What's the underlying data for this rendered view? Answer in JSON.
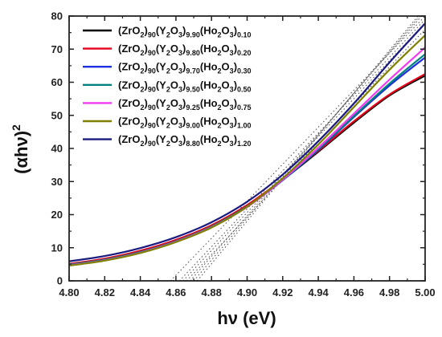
{
  "chart_data": {
    "type": "line",
    "xlabel": "hν (eV)",
    "ylabel": "(αhν)²",
    "xlim": [
      4.8,
      5.0
    ],
    "ylim": [
      0,
      80
    ],
    "x_ticks": [
      "4.80",
      "4.82",
      "4.84",
      "4.86",
      "4.88",
      "4.90",
      "4.92",
      "4.94",
      "4.96",
      "4.98",
      "5.00"
    ],
    "y_ticks": [
      "0",
      "10",
      "20",
      "30",
      "40",
      "50",
      "60",
      "70",
      "80"
    ],
    "legend_position": "top-left",
    "x": [
      4.8,
      4.82,
      4.84,
      4.86,
      4.88,
      4.9,
      4.92,
      4.94,
      4.96,
      4.98,
      5.0
    ],
    "series": [
      {
        "name": "(ZrO2)90(Y2O3)9.90(Ho2O3)0.10",
        "parts": [
          [
            "(ZrO",
            ""
          ],
          [
            "2",
            "sub"
          ],
          [
            ")",
            ""
          ],
          [
            "90",
            "sub"
          ],
          [
            "(Y",
            ""
          ],
          [
            "2",
            "sub"
          ],
          [
            "O",
            ""
          ],
          [
            "3",
            "sub"
          ],
          [
            ")",
            ""
          ],
          [
            "9.90",
            "sub"
          ],
          [
            "(Ho",
            ""
          ],
          [
            "2",
            "sub"
          ],
          [
            "O",
            ""
          ],
          [
            "3",
            "sub"
          ],
          [
            ")",
            ""
          ],
          [
            "0.10",
            "sub"
          ]
        ],
        "color": "#000000",
        "values": [
          5.0,
          6.6,
          9.0,
          12.3,
          16.7,
          22.8,
          30.5,
          39.0,
          47.8,
          56.0,
          62.0
        ]
      },
      {
        "name": "(ZrO2)90(Y2O3)9.80(Ho2O3)0.20",
        "parts": [
          [
            "(ZrO",
            ""
          ],
          [
            "2",
            "sub"
          ],
          [
            ")",
            ""
          ],
          [
            "90",
            "sub"
          ],
          [
            "(Y",
            ""
          ],
          [
            "2",
            "sub"
          ],
          [
            "O",
            ""
          ],
          [
            "3",
            "sub"
          ],
          [
            ")",
            ""
          ],
          [
            "9.80",
            "sub"
          ],
          [
            "(Ho",
            ""
          ],
          [
            "2",
            "sub"
          ],
          [
            "O",
            ""
          ],
          [
            "3",
            "sub"
          ],
          [
            ")",
            ""
          ],
          [
            "0.20",
            "sub"
          ]
        ],
        "color": "#e8001a",
        "values": [
          5.1,
          6.7,
          9.1,
          12.4,
          16.8,
          22.9,
          30.7,
          39.3,
          48.2,
          56.3,
          62.5
        ]
      },
      {
        "name": "(ZrO2)90(Y2O3)9.70(Ho2O3)0.30",
        "parts": [
          [
            "(ZrO",
            ""
          ],
          [
            "2",
            "sub"
          ],
          [
            ")",
            ""
          ],
          [
            "90",
            "sub"
          ],
          [
            "(Y",
            ""
          ],
          [
            "2",
            "sub"
          ],
          [
            "O",
            ""
          ],
          [
            "3",
            "sub"
          ],
          [
            ")",
            ""
          ],
          [
            "9.70",
            "sub"
          ],
          [
            "(Ho",
            ""
          ],
          [
            "2",
            "sub"
          ],
          [
            "O",
            ""
          ],
          [
            "3",
            "sub"
          ],
          [
            ")",
            ""
          ],
          [
            "0.30",
            "sub"
          ]
        ],
        "color": "#1f2fe0",
        "values": [
          4.8,
          6.3,
          8.6,
          11.9,
          16.3,
          22.4,
          30.4,
          39.6,
          49.5,
          59.0,
          67.5
        ]
      },
      {
        "name": "(ZrO2)90(Y2O3)9.50(Ho2O3)0.50",
        "parts": [
          [
            "(ZrO",
            ""
          ],
          [
            "2",
            "sub"
          ],
          [
            ")",
            ""
          ],
          [
            "90",
            "sub"
          ],
          [
            "(Y",
            ""
          ],
          [
            "2",
            "sub"
          ],
          [
            "O",
            ""
          ],
          [
            "3",
            "sub"
          ],
          [
            ")",
            ""
          ],
          [
            "9.50",
            "sub"
          ],
          [
            "(Ho",
            ""
          ],
          [
            "2",
            "sub"
          ],
          [
            "O",
            ""
          ],
          [
            "3",
            "sub"
          ],
          [
            ")",
            ""
          ],
          [
            "0.50",
            "sub"
          ]
        ],
        "color": "#00827f",
        "values": [
          4.9,
          6.4,
          8.7,
          12.0,
          16.4,
          22.5,
          30.5,
          39.8,
          49.8,
          59.6,
          68.5
        ]
      },
      {
        "name": "(ZrO2)90(Y2O3)9.25(Ho2O3)0.75",
        "parts": [
          [
            "(ZrO",
            ""
          ],
          [
            "2",
            "sub"
          ],
          [
            ")",
            ""
          ],
          [
            "90",
            "sub"
          ],
          [
            "(Y",
            ""
          ],
          [
            "2",
            "sub"
          ],
          [
            "O",
            ""
          ],
          [
            "3",
            "sub"
          ],
          [
            ")",
            ""
          ],
          [
            "9.25",
            "sub"
          ],
          [
            "(Ho",
            ""
          ],
          [
            "2",
            "sub"
          ],
          [
            "O",
            ""
          ],
          [
            "3",
            "sub"
          ],
          [
            ")",
            ""
          ],
          [
            "0.75",
            "sub"
          ]
        ],
        "color": "#f03cf0",
        "values": [
          4.7,
          6.2,
          8.5,
          11.8,
          16.2,
          22.3,
          30.6,
          40.2,
          50.5,
          60.8,
          70.5
        ]
      },
      {
        "name": "(ZrO2)90(Y2O3)9.00(Ho2O3)1.00",
        "parts": [
          [
            "(ZrO",
            ""
          ],
          [
            "2",
            "sub"
          ],
          [
            ")",
            ""
          ],
          [
            "90",
            "sub"
          ],
          [
            "(Y",
            ""
          ],
          [
            "2",
            "sub"
          ],
          [
            "O",
            ""
          ],
          [
            "3",
            "sub"
          ],
          [
            ")",
            ""
          ],
          [
            "9.00",
            "sub"
          ],
          [
            "(Ho",
            ""
          ],
          [
            "2",
            "sub"
          ],
          [
            "O",
            ""
          ],
          [
            "3",
            "sub"
          ],
          [
            ")",
            ""
          ],
          [
            "1.00",
            "sub"
          ]
        ],
        "color": "#7f7f00",
        "values": [
          4.6,
          6.1,
          8.4,
          11.7,
          16.1,
          22.4,
          31.0,
          41.2,
          52.5,
          63.8,
          74.2
        ]
      },
      {
        "name": "(ZrO2)90(Y2O3)8.80(Ho2O3)1.20",
        "parts": [
          [
            "(ZrO",
            ""
          ],
          [
            "2",
            "sub"
          ],
          [
            ")",
            ""
          ],
          [
            "90",
            "sub"
          ],
          [
            "(Y",
            ""
          ],
          [
            "2",
            "sub"
          ],
          [
            "O",
            ""
          ],
          [
            "3",
            "sub"
          ],
          [
            ")",
            ""
          ],
          [
            "8.80",
            "sub"
          ],
          [
            "(Ho",
            ""
          ],
          [
            "2",
            "sub"
          ],
          [
            "O",
            ""
          ],
          [
            "3",
            "sub"
          ],
          [
            ")",
            ""
          ],
          [
            "1.20",
            "sub"
          ]
        ],
        "color": "#1a1a80",
        "values": [
          5.9,
          7.5,
          9.9,
          13.2,
          17.7,
          23.9,
          32.1,
          42.2,
          53.6,
          66.0,
          77.8
        ]
      }
    ],
    "tangent_lines": [
      {
        "from": [
          4.857,
          0
        ],
        "to": [
          5.0,
          80
        ]
      },
      {
        "from": [
          4.862,
          0
        ],
        "to": [
          5.0,
          79
        ]
      },
      {
        "from": [
          4.864,
          0
        ],
        "to": [
          5.0,
          78
        ]
      },
      {
        "from": [
          4.866,
          0
        ],
        "to": [
          5.0,
          76
        ]
      },
      {
        "from": [
          4.868,
          0
        ],
        "to": [
          4.998,
          80
        ]
      },
      {
        "from": [
          4.87,
          0
        ],
        "to": [
          4.997,
          80
        ]
      },
      {
        "from": [
          4.872,
          0
        ],
        "to": [
          4.996,
          80
        ]
      }
    ]
  }
}
